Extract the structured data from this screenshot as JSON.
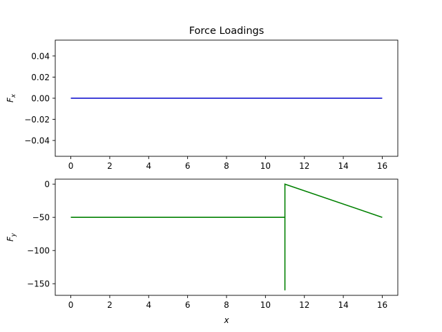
{
  "figure": {
    "title": "Force Loadings"
  },
  "chart_data": [
    {
      "type": "line",
      "title": "Force Loadings",
      "ylabel": "F",
      "ylabel_sub": "x",
      "xlabel": "",
      "xlim": [
        -0.8,
        16.8
      ],
      "ylim": [
        -0.055,
        0.055
      ],
      "xticks": [
        0,
        2,
        4,
        6,
        8,
        10,
        12,
        14,
        16
      ],
      "xtick_labels": [
        "0",
        "2",
        "4",
        "6",
        "8",
        "10",
        "12",
        "14",
        "16"
      ],
      "yticks": [
        0.04,
        0.02,
        0.0,
        -0.02,
        -0.04
      ],
      "ytick_labels": [
        "0.04",
        "0.02",
        "0.00",
        "−0.02",
        "−0.04"
      ],
      "grid": false,
      "series": [
        {
          "color": "#0000cc",
          "x": [
            0,
            16
          ],
          "y": [
            0,
            0
          ]
        }
      ]
    },
    {
      "type": "line",
      "title": "",
      "ylabel": "F",
      "ylabel_sub": "y",
      "xlabel": "x",
      "xlim": [
        -0.8,
        16.8
      ],
      "ylim": [
        -167.5,
        7.5
      ],
      "xticks": [
        0,
        2,
        4,
        6,
        8,
        10,
        12,
        14,
        16
      ],
      "xtick_labels": [
        "0",
        "2",
        "4",
        "6",
        "8",
        "10",
        "12",
        "14",
        "16"
      ],
      "yticks": [
        0,
        -50,
        -100,
        -150
      ],
      "ytick_labels": [
        "0",
        "−50",
        "−100",
        "−150"
      ],
      "grid": false,
      "series": [
        {
          "color": "#008000",
          "x": [
            0,
            11,
            11,
            11,
            16
          ],
          "y": [
            -50,
            -50,
            -160,
            0,
            -50
          ]
        }
      ]
    }
  ]
}
